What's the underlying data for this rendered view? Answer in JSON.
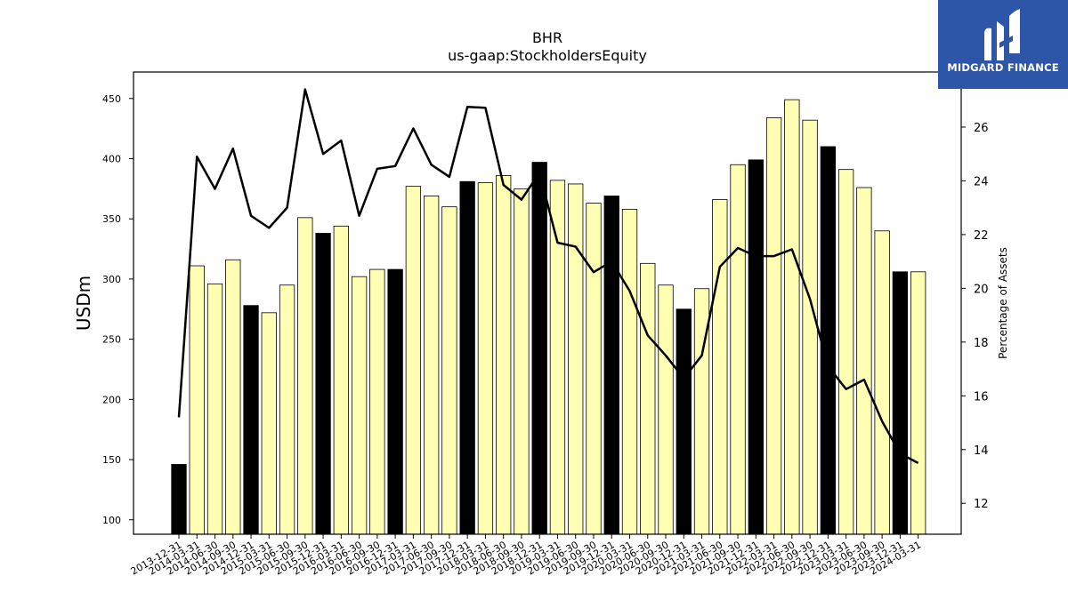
{
  "title": "BHR",
  "subtitle": "us-gaap:StockholdersEquity",
  "logo": {
    "text": "MIDGARD FINANCE",
    "icon": "midgard-logo-icon",
    "color": "#2e56a8"
  },
  "chart_data": {
    "type": "bar",
    "title": "BHR",
    "subtitle": "us-gaap:StockholdersEquity",
    "ylabel": "USDm",
    "y2label": "Percentage of Assets",
    "ylim": [
      88,
      472
    ],
    "y2lim": [
      10.85,
      28.05
    ],
    "yticks": [
      100,
      150,
      200,
      250,
      300,
      350,
      400,
      450
    ],
    "y2ticks": [
      12,
      14,
      16,
      18,
      20,
      22,
      24,
      26
    ],
    "grid": false,
    "colors": {
      "bar": "#ffffb3",
      "bar_year_end": "#000000",
      "line": "#000000"
    },
    "categories": [
      "2013-12-31",
      "2014-03-31",
      "2014-06-30",
      "2014-09-30",
      "2014-12-31",
      "2015-03-31",
      "2015-06-30",
      "2015-09-30",
      "2015-12-31",
      "2016-03-31",
      "2016-06-30",
      "2016-09-30",
      "2016-12-31",
      "2017-03-31",
      "2017-06-30",
      "2017-09-30",
      "2017-12-31",
      "2018-03-31",
      "2018-06-30",
      "2018-09-30",
      "2018-12-31",
      "2019-03-31",
      "2019-06-30",
      "2019-09-30",
      "2019-12-31",
      "2020-03-31",
      "2020-06-30",
      "2020-09-30",
      "2020-12-31",
      "2021-03-31",
      "2021-06-30",
      "2021-09-30",
      "2021-12-31",
      "2022-03-31",
      "2022-06-30",
      "2022-09-30",
      "2022-12-31",
      "2023-03-31",
      "2023-06-30",
      "2023-09-30",
      "2023-12-31",
      "2024-03-31"
    ],
    "series": [
      {
        "type": "bar",
        "axis": "left",
        "values": [
          146,
          311,
          296,
          316,
          278,
          272,
          295,
          351,
          338,
          344,
          302,
          308,
          308,
          377,
          369,
          360,
          381,
          380,
          386,
          375,
          397,
          382,
          379,
          363,
          369,
          358,
          313,
          295,
          275,
          292,
          366,
          395,
          399,
          434,
          449,
          432,
          410,
          391,
          376,
          340,
          306,
          306
        ]
      },
      {
        "type": "line",
        "axis": "right",
        "values": [
          15.2,
          24.9,
          23.7,
          25.2,
          22.7,
          22.25,
          23.0,
          27.4,
          25.0,
          25.5,
          22.7,
          24.45,
          24.55,
          25.95,
          24.6,
          24.15,
          26.75,
          26.72,
          23.85,
          23.3,
          24.3,
          21.7,
          21.55,
          20.6,
          21.0,
          19.9,
          18.25,
          17.5,
          16.65,
          17.5,
          20.8,
          21.5,
          21.2,
          21.2,
          21.45,
          19.6,
          17.1,
          16.25,
          16.6,
          15.05,
          13.85,
          13.5
        ]
      }
    ]
  }
}
